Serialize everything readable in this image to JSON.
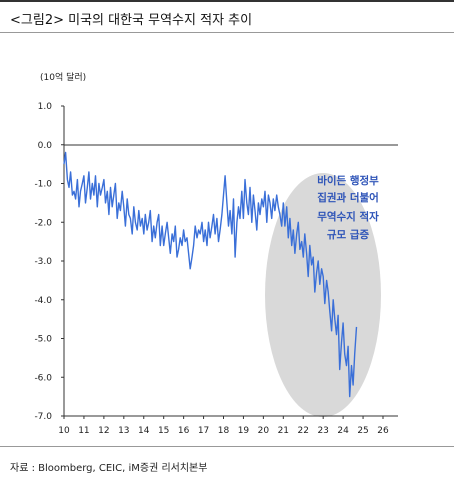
{
  "header": {
    "title": "<그림2> 미국의 대한국 무역수지 적자 추이"
  },
  "footer": {
    "source": "자료 : Bloomberg, CEIC, iM증권 리서치본부"
  },
  "chart_data": {
    "type": "line",
    "title": "",
    "unit_label": "(10억 달러)",
    "xlabel": "",
    "ylabel": "",
    "xlim": [
      2010,
      2026
    ],
    "ylim": [
      -7.0,
      1.0
    ],
    "x_ticks": [
      "10",
      "11",
      "12",
      "13",
      "14",
      "15",
      "16",
      "17",
      "18",
      "19",
      "20",
      "21",
      "22",
      "23",
      "24",
      "25",
      "26"
    ],
    "y_ticks": [
      "1.0",
      "0.0",
      "-1.0",
      "-2.0",
      "-3.0",
      "-4.0",
      "-5.0",
      "-6.0",
      "-7.0"
    ],
    "annotation": [
      "바이든 행정부",
      "집권과 더불어",
      "무역수지 적자",
      "규모 급증"
    ],
    "colors": {
      "line": "#3a6fd8",
      "ellipse": "#d9d9d9",
      "annotation": "#2e54b8"
    },
    "series": [
      {
        "values": [
          [
            2010.0,
            -0.5
          ],
          [
            2010.08,
            -0.2
          ],
          [
            2010.17,
            -0.9
          ],
          [
            2010.25,
            -1.1
          ],
          [
            2010.33,
            -0.7
          ],
          [
            2010.42,
            -1.3
          ],
          [
            2010.5,
            -1.2
          ],
          [
            2010.58,
            -1.4
          ],
          [
            2010.67,
            -0.9
          ],
          [
            2010.75,
            -1.6
          ],
          [
            2010.83,
            -1.2
          ],
          [
            2010.92,
            -1.0
          ],
          [
            2011.0,
            -0.8
          ],
          [
            2011.08,
            -1.5
          ],
          [
            2011.17,
            -1.1
          ],
          [
            2011.25,
            -0.7
          ],
          [
            2011.33,
            -1.4
          ],
          [
            2011.42,
            -1.0
          ],
          [
            2011.5,
            -1.3
          ],
          [
            2011.58,
            -0.8
          ],
          [
            2011.67,
            -1.6
          ],
          [
            2011.75,
            -1.0
          ],
          [
            2011.83,
            -1.3
          ],
          [
            2011.92,
            -1.1
          ],
          [
            2012.0,
            -0.9
          ],
          [
            2012.08,
            -1.5
          ],
          [
            2012.17,
            -1.2
          ],
          [
            2012.25,
            -1.8
          ],
          [
            2012.33,
            -1.1
          ],
          [
            2012.42,
            -1.6
          ],
          [
            2012.5,
            -1.3
          ],
          [
            2012.58,
            -1.0
          ],
          [
            2012.67,
            -1.9
          ],
          [
            2012.75,
            -1.5
          ],
          [
            2012.83,
            -1.7
          ],
          [
            2012.92,
            -1.2
          ],
          [
            2013.0,
            -1.6
          ],
          [
            2013.08,
            -2.1
          ],
          [
            2013.17,
            -1.4
          ],
          [
            2013.25,
            -1.8
          ],
          [
            2013.33,
            -1.9
          ],
          [
            2013.42,
            -2.3
          ],
          [
            2013.5,
            -1.6
          ],
          [
            2013.58,
            -2.0
          ],
          [
            2013.67,
            -2.2
          ],
          [
            2013.75,
            -1.7
          ],
          [
            2013.83,
            -2.1
          ],
          [
            2013.92,
            -1.9
          ],
          [
            2014.0,
            -2.3
          ],
          [
            2014.08,
            -1.8
          ],
          [
            2014.17,
            -2.2
          ],
          [
            2014.25,
            -2.0
          ],
          [
            2014.33,
            -1.7
          ],
          [
            2014.42,
            -2.5
          ],
          [
            2014.5,
            -2.1
          ],
          [
            2014.58,
            -2.4
          ],
          [
            2014.67,
            -2.0
          ],
          [
            2014.75,
            -1.8
          ],
          [
            2014.83,
            -2.6
          ],
          [
            2014.92,
            -2.1
          ],
          [
            2015.0,
            -2.6
          ],
          [
            2015.08,
            -2.3
          ],
          [
            2015.17,
            -2.0
          ],
          [
            2015.25,
            -2.4
          ],
          [
            2015.33,
            -2.8
          ],
          [
            2015.42,
            -2.3
          ],
          [
            2015.5,
            -2.5
          ],
          [
            2015.58,
            -2.1
          ],
          [
            2015.67,
            -2.9
          ],
          [
            2015.75,
            -2.7
          ],
          [
            2015.83,
            -2.4
          ],
          [
            2015.92,
            -2.6
          ],
          [
            2016.0,
            -2.2
          ],
          [
            2016.08,
            -2.5
          ],
          [
            2016.17,
            -2.4
          ],
          [
            2016.25,
            -2.8
          ],
          [
            2016.33,
            -3.2
          ],
          [
            2016.42,
            -2.9
          ],
          [
            2016.5,
            -2.6
          ],
          [
            2016.58,
            -2.1
          ],
          [
            2016.67,
            -2.4
          ],
          [
            2016.75,
            -2.2
          ],
          [
            2016.83,
            -2.3
          ],
          [
            2016.92,
            -2.0
          ],
          [
            2017.0,
            -2.5
          ],
          [
            2017.08,
            -2.2
          ],
          [
            2017.17,
            -2.6
          ],
          [
            2017.25,
            -2.0
          ],
          [
            2017.33,
            -2.4
          ],
          [
            2017.42,
            -2.1
          ],
          [
            2017.5,
            -1.8
          ],
          [
            2017.58,
            -2.3
          ],
          [
            2017.67,
            -1.9
          ],
          [
            2017.75,
            -2.5
          ],
          [
            2017.83,
            -2.2
          ],
          [
            2017.92,
            -1.8
          ],
          [
            2018.0,
            -1.3
          ],
          [
            2018.08,
            -0.8
          ],
          [
            2018.17,
            -1.5
          ],
          [
            2018.25,
            -2.1
          ],
          [
            2018.33,
            -1.7
          ],
          [
            2018.42,
            -2.3
          ],
          [
            2018.5,
            -1.4
          ],
          [
            2018.58,
            -2.9
          ],
          [
            2018.67,
            -2.0
          ],
          [
            2018.75,
            -1.6
          ],
          [
            2018.83,
            -1.9
          ],
          [
            2018.92,
            -1.2
          ],
          [
            2019.0,
            -1.9
          ],
          [
            2019.08,
            -0.9
          ],
          [
            2019.17,
            -1.5
          ],
          [
            2019.25,
            -1.8
          ],
          [
            2019.33,
            -1.1
          ],
          [
            2019.42,
            -2.0
          ],
          [
            2019.5,
            -1.3
          ],
          [
            2019.58,
            -1.7
          ],
          [
            2019.67,
            -2.2
          ],
          [
            2019.75,
            -1.5
          ],
          [
            2019.83,
            -1.8
          ],
          [
            2019.92,
            -1.4
          ],
          [
            2020.0,
            -1.6
          ],
          [
            2020.08,
            -1.2
          ],
          [
            2020.17,
            -2.0
          ],
          [
            2020.25,
            -1.3
          ],
          [
            2020.33,
            -1.5
          ],
          [
            2020.42,
            -1.9
          ],
          [
            2020.5,
            -1.4
          ],
          [
            2020.58,
            -1.7
          ],
          [
            2020.67,
            -1.3
          ],
          [
            2020.75,
            -1.6
          ],
          [
            2020.83,
            -1.8
          ],
          [
            2020.92,
            -2.1
          ],
          [
            2021.0,
            -1.5
          ],
          [
            2021.08,
            -2.1
          ],
          [
            2021.17,
            -1.6
          ],
          [
            2021.25,
            -2.4
          ],
          [
            2021.33,
            -1.9
          ],
          [
            2021.42,
            -2.6
          ],
          [
            2021.5,
            -2.2
          ],
          [
            2021.58,
            -2.8
          ],
          [
            2021.67,
            -2.3
          ],
          [
            2021.75,
            -2.0
          ],
          [
            2021.83,
            -2.7
          ],
          [
            2021.92,
            -2.5
          ],
          [
            2022.0,
            -2.9
          ],
          [
            2022.08,
            -2.3
          ],
          [
            2022.17,
            -2.8
          ],
          [
            2022.25,
            -3.4
          ],
          [
            2022.33,
            -2.6
          ],
          [
            2022.42,
            -3.1
          ],
          [
            2022.5,
            -2.9
          ],
          [
            2022.58,
            -3.8
          ],
          [
            2022.67,
            -3.3
          ],
          [
            2022.75,
            -3.0
          ],
          [
            2022.83,
            -3.6
          ],
          [
            2022.92,
            -3.2
          ],
          [
            2023.0,
            -3.4
          ],
          [
            2023.08,
            -4.1
          ],
          [
            2023.17,
            -3.5
          ],
          [
            2023.25,
            -3.8
          ],
          [
            2023.33,
            -4.3
          ],
          [
            2023.42,
            -4.8
          ],
          [
            2023.5,
            -4.0
          ],
          [
            2023.58,
            -4.5
          ],
          [
            2023.67,
            -4.9
          ],
          [
            2023.75,
            -4.4
          ],
          [
            2023.83,
            -5.8
          ],
          [
            2023.92,
            -5.1
          ],
          [
            2024.0,
            -4.6
          ],
          [
            2024.08,
            -5.4
          ],
          [
            2024.17,
            -5.7
          ],
          [
            2024.25,
            -5.2
          ],
          [
            2024.33,
            -6.5
          ],
          [
            2024.42,
            -5.7
          ],
          [
            2024.5,
            -6.2
          ],
          [
            2024.58,
            -5.4
          ],
          [
            2024.67,
            -4.7
          ]
        ]
      }
    ]
  }
}
